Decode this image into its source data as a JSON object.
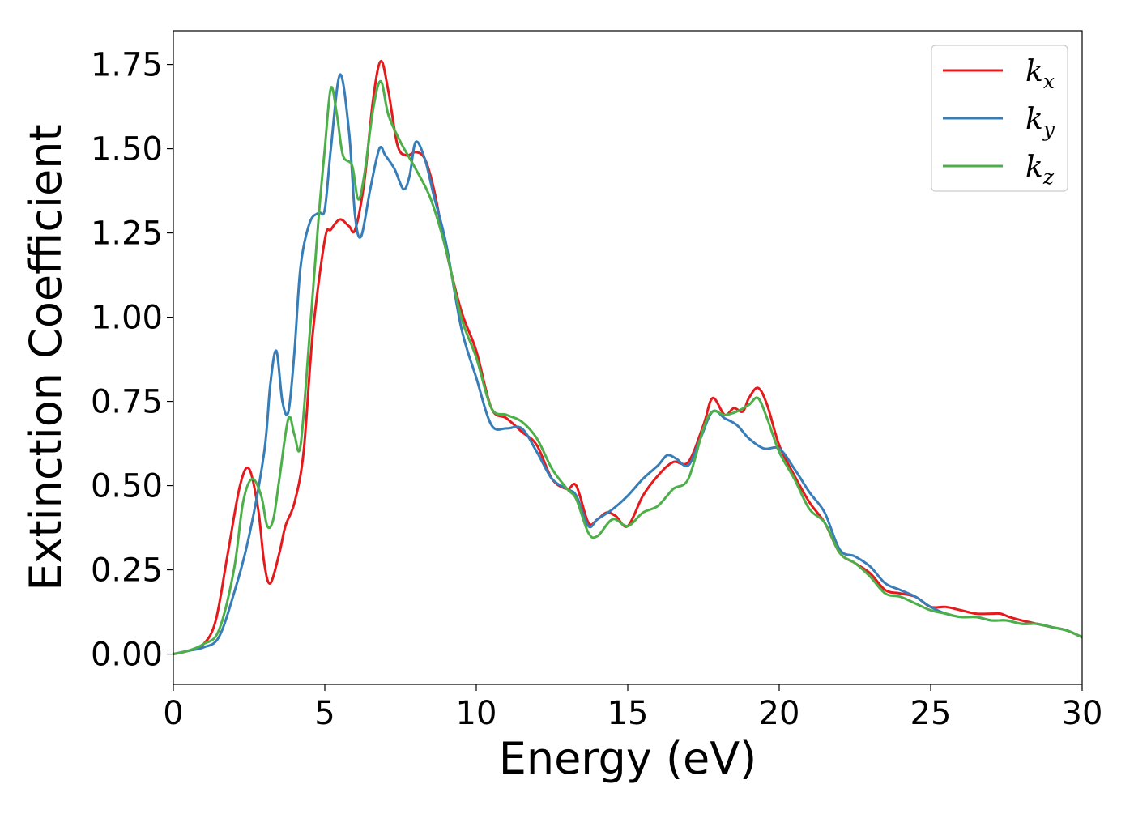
{
  "chart_data": {
    "type": "line",
    "title": "",
    "xlabel": "Energy (eV)",
    "ylabel": "Extinction Coefficient",
    "xlim": [
      0,
      30
    ],
    "ylim": [
      -0.09,
      1.85
    ],
    "xticks": [
      0,
      5,
      10,
      15,
      20,
      25,
      30
    ],
    "xtick_labels": [
      "0",
      "5",
      "10",
      "15",
      "20",
      "25",
      "30"
    ],
    "yticks": [
      0.0,
      0.25,
      0.5,
      0.75,
      1.0,
      1.25,
      1.5,
      1.75
    ],
    "ytick_labels": [
      "0.00",
      "0.25",
      "0.50",
      "0.75",
      "1.00",
      "1.25",
      "1.50",
      "1.75"
    ],
    "grid": false,
    "legend_position": "top-right",
    "series": [
      {
        "name": "k_x",
        "label_base": "k",
        "label_sub": "x",
        "color": "#e41a1c",
        "x": [
          0,
          0.5,
          1.0,
          1.4,
          1.8,
          2.2,
          2.5,
          2.8,
          3.0,
          3.2,
          3.5,
          3.7,
          4.0,
          4.3,
          4.6,
          5.0,
          5.2,
          5.5,
          5.8,
          6.0,
          6.3,
          6.6,
          6.85,
          7.1,
          7.4,
          7.7,
          8.0,
          8.3,
          8.6,
          9.0,
          9.5,
          10.0,
          10.5,
          11.0,
          11.5,
          12.0,
          12.5,
          13.0,
          13.3,
          13.7,
          14.0,
          14.3,
          14.6,
          15.0,
          15.5,
          16.0,
          16.5,
          17.0,
          17.5,
          17.8,
          18.2,
          18.5,
          18.8,
          19.0,
          19.3,
          19.6,
          20.0,
          20.5,
          21.0,
          21.5,
          22.0,
          22.5,
          23.0,
          23.5,
          24.0,
          24.5,
          25.0,
          25.5,
          26.0,
          26.5,
          27.0,
          27.3,
          27.6,
          28.0,
          28.5,
          29.0,
          29.5,
          30.0
        ],
        "y": [
          0.0,
          0.01,
          0.03,
          0.1,
          0.3,
          0.5,
          0.55,
          0.43,
          0.27,
          0.21,
          0.3,
          0.38,
          0.45,
          0.6,
          0.95,
          1.23,
          1.26,
          1.29,
          1.27,
          1.26,
          1.4,
          1.65,
          1.76,
          1.67,
          1.51,
          1.48,
          1.49,
          1.47,
          1.38,
          1.2,
          1.02,
          0.9,
          0.73,
          0.7,
          0.66,
          0.62,
          0.52,
          0.49,
          0.5,
          0.39,
          0.4,
          0.42,
          0.41,
          0.38,
          0.47,
          0.53,
          0.57,
          0.57,
          0.68,
          0.76,
          0.71,
          0.73,
          0.72,
          0.76,
          0.79,
          0.74,
          0.62,
          0.53,
          0.45,
          0.39,
          0.3,
          0.27,
          0.24,
          0.19,
          0.18,
          0.17,
          0.14,
          0.14,
          0.13,
          0.12,
          0.12,
          0.12,
          0.11,
          0.1,
          0.09,
          0.08,
          0.07,
          0.05
        ]
      },
      {
        "name": "k_y",
        "label_base": "k",
        "label_sub": "y",
        "color": "#377eb8",
        "x": [
          0,
          0.5,
          1.0,
          1.5,
          2.0,
          2.5,
          3.0,
          3.2,
          3.4,
          3.6,
          3.8,
          4.0,
          4.2,
          4.5,
          4.8,
          5.0,
          5.2,
          5.5,
          5.8,
          6.0,
          6.2,
          6.5,
          6.8,
          7.0,
          7.3,
          7.6,
          7.8,
          8.0,
          8.3,
          8.6,
          9.0,
          9.5,
          10.0,
          10.5,
          11.0,
          11.5,
          12.0,
          12.5,
          13.0,
          13.3,
          13.7,
          14.0,
          14.5,
          15.0,
          15.5,
          16.0,
          16.3,
          16.6,
          17.0,
          17.4,
          17.8,
          18.2,
          18.6,
          19.0,
          19.5,
          20.0,
          20.5,
          21.0,
          21.5,
          22.0,
          22.5,
          23.0,
          23.5,
          24.0,
          24.5,
          25.0,
          25.5,
          26.0,
          26.5,
          27.0,
          27.5,
          28.0,
          28.5,
          29.0,
          29.5,
          30.0
        ],
        "y": [
          0.0,
          0.01,
          0.02,
          0.05,
          0.18,
          0.35,
          0.6,
          0.8,
          0.9,
          0.75,
          0.72,
          0.9,
          1.15,
          1.28,
          1.31,
          1.32,
          1.5,
          1.72,
          1.55,
          1.3,
          1.24,
          1.38,
          1.5,
          1.48,
          1.44,
          1.38,
          1.42,
          1.52,
          1.47,
          1.36,
          1.22,
          0.97,
          0.82,
          0.68,
          0.67,
          0.67,
          0.6,
          0.52,
          0.49,
          0.47,
          0.38,
          0.4,
          0.43,
          0.47,
          0.52,
          0.56,
          0.59,
          0.58,
          0.56,
          0.64,
          0.72,
          0.7,
          0.68,
          0.64,
          0.61,
          0.61,
          0.55,
          0.48,
          0.42,
          0.31,
          0.29,
          0.26,
          0.21,
          0.19,
          0.17,
          0.14,
          0.12,
          0.11,
          0.11,
          0.1,
          0.1,
          0.09,
          0.09,
          0.08,
          0.07,
          0.05
        ]
      },
      {
        "name": "k_z",
        "label_base": "k",
        "label_sub": "z",
        "color": "#4daf4a",
        "x": [
          0,
          0.5,
          1.0,
          1.5,
          2.0,
          2.3,
          2.6,
          2.9,
          3.1,
          3.3,
          3.5,
          3.8,
          4.0,
          4.2,
          4.5,
          4.8,
          5.0,
          5.2,
          5.4,
          5.6,
          5.9,
          6.1,
          6.3,
          6.6,
          6.85,
          7.1,
          7.5,
          8.0,
          8.5,
          9.0,
          9.5,
          10.0,
          10.5,
          11.0,
          11.5,
          12.0,
          12.5,
          13.0,
          13.3,
          13.7,
          14.0,
          14.5,
          15.0,
          15.5,
          16.0,
          16.5,
          17.0,
          17.5,
          17.8,
          18.2,
          18.6,
          19.0,
          19.3,
          19.6,
          20.0,
          20.5,
          21.0,
          21.5,
          22.0,
          22.5,
          23.0,
          23.5,
          24.0,
          24.5,
          25.0,
          25.5,
          26.0,
          26.5,
          27.0,
          27.5,
          28.0,
          28.5,
          29.0,
          29.5,
          30.0
        ],
        "y": [
          0.0,
          0.01,
          0.03,
          0.07,
          0.25,
          0.45,
          0.52,
          0.47,
          0.38,
          0.4,
          0.52,
          0.7,
          0.65,
          0.62,
          0.95,
          1.3,
          1.5,
          1.68,
          1.6,
          1.48,
          1.45,
          1.35,
          1.42,
          1.62,
          1.7,
          1.6,
          1.52,
          1.44,
          1.35,
          1.2,
          1.0,
          0.88,
          0.73,
          0.71,
          0.69,
          0.64,
          0.55,
          0.49,
          0.46,
          0.36,
          0.35,
          0.4,
          0.38,
          0.42,
          0.44,
          0.49,
          0.52,
          0.67,
          0.72,
          0.71,
          0.72,
          0.74,
          0.76,
          0.7,
          0.6,
          0.52,
          0.43,
          0.39,
          0.3,
          0.27,
          0.23,
          0.18,
          0.17,
          0.15,
          0.13,
          0.12,
          0.11,
          0.11,
          0.1,
          0.1,
          0.09,
          0.09,
          0.08,
          0.07,
          0.05
        ]
      }
    ]
  }
}
